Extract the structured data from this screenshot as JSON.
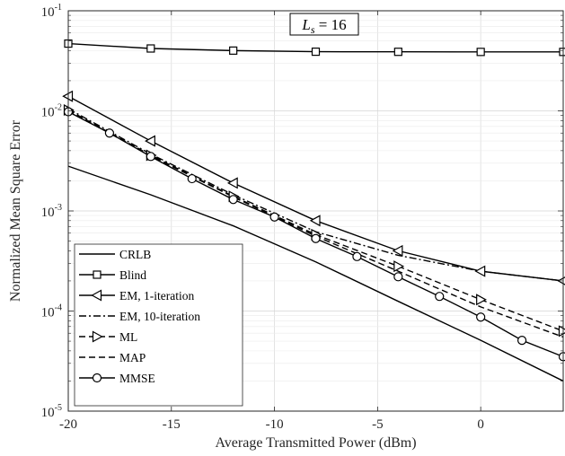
{
  "chart_data": {
    "type": "line",
    "xlabel": "Average Transmitted Power (dBm)",
    "ylabel": "Normalized Mean Square Error",
    "xlim": [
      -20,
      4
    ],
    "ylim": [
      1e-05,
      0.1
    ],
    "yscale": "log",
    "grid": true,
    "legend_position": "bottom-left",
    "x_ticks": [
      -20,
      -15,
      -10,
      -5,
      0
    ],
    "x_tick_labels": [
      "-20",
      "-15",
      "-10",
      "-5",
      "0"
    ],
    "y_ticks": [
      1e-05,
      0.0001,
      0.001,
      0.01,
      0.1
    ],
    "y_tick_labels": [
      {
        "base": "10",
        "exp": "-5"
      },
      {
        "base": "10",
        "exp": "-4"
      },
      {
        "base": "10",
        "exp": "-3"
      },
      {
        "base": "10",
        "exp": "-2"
      },
      {
        "base": "10",
        "exp": "-1"
      }
    ],
    "annotation": {
      "main": "L",
      "sub": "s",
      "rest": " = 16"
    },
    "series": [
      {
        "name": "CRLB",
        "line": "solid",
        "marker": "none",
        "x": [
          -20,
          -16,
          -12,
          -8,
          -4,
          0,
          4
        ],
        "y": [
          0.0028,
          0.00145,
          0.00071,
          0.00031,
          0.000125,
          5.1e-05,
          2e-05
        ]
      },
      {
        "name": "Blind",
        "line": "solid",
        "marker": "square",
        "x": [
          -20,
          -16,
          -12,
          -8,
          -4,
          0,
          4
        ],
        "y": [
          0.047,
          0.042,
          0.04,
          0.039,
          0.0389,
          0.0388,
          0.0388
        ]
      },
      {
        "name": "EM, 1-iteration",
        "line": "solid",
        "marker": "triangle-left",
        "x": [
          -20,
          -16,
          -12,
          -8,
          -4,
          0,
          4
        ],
        "y": [
          0.014,
          0.005,
          0.0019,
          0.0008,
          0.0004,
          0.00025,
          0.0002
        ]
      },
      {
        "name": "EM, 10-iteration",
        "line": "dashdot",
        "marker": "none",
        "x": [
          -20,
          -16,
          -12,
          -8,
          -4,
          0,
          4
        ],
        "y": [
          0.0105,
          0.0037,
          0.00145,
          0.00062,
          0.00036,
          0.00025,
          0.0002
        ]
      },
      {
        "name": "ML",
        "line": "dashed",
        "marker": "triangle-right",
        "x": [
          -20,
          -16,
          -12,
          -8,
          -4,
          0,
          4
        ],
        "y": [
          0.0102,
          0.0036,
          0.0014,
          0.00058,
          0.00028,
          0.00013,
          6.3e-05
        ]
      },
      {
        "name": "MAP",
        "line": "dashed",
        "marker": "none",
        "x": [
          -20,
          -16,
          -12,
          -8,
          -4,
          0,
          4
        ],
        "y": [
          0.0101,
          0.00355,
          0.00138,
          0.00056,
          0.00025,
          0.00011,
          5.5e-05
        ]
      },
      {
        "name": "MMSE",
        "line": "solid",
        "marker": "circle",
        "x": [
          -20,
          -18,
          -16,
          -14,
          -12,
          -10,
          -8,
          -6,
          -4,
          -2,
          0,
          2,
          4
        ],
        "y": [
          0.0098,
          0.006,
          0.0035,
          0.0021,
          0.0013,
          0.00087,
          0.00053,
          0.00035,
          0.00022,
          0.00014,
          8.7e-05,
          5.1e-05,
          3.5e-05
        ]
      }
    ]
  }
}
